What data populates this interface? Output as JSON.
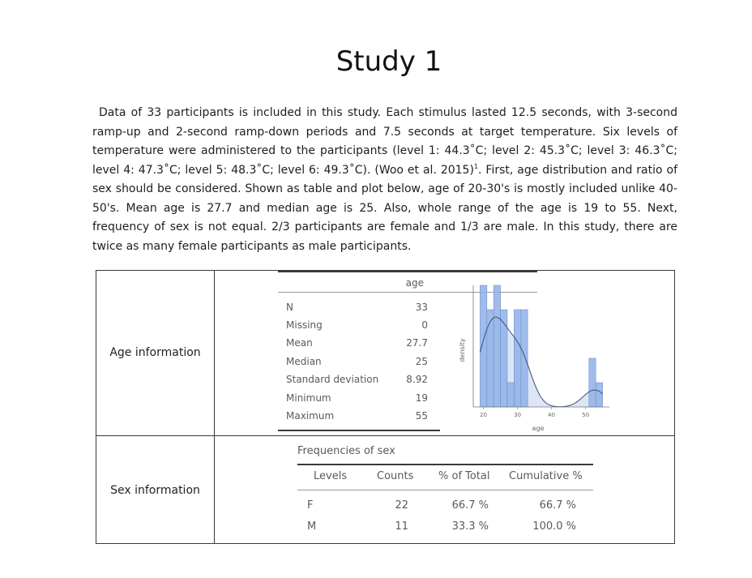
{
  "title": "Study 1",
  "paragraph": {
    "text_a": "Data of 33 participants is included in this study. Each stimulus lasted 12.5 seconds, with 3-second ramp-up and 2-second ramp-down periods and 7.5 seconds at target temperature. Six levels of temperature were administered to the participants (level 1: 44.3˚C; level 2: 45.3˚C; level 3: 46.3˚C; level 4: 47.3˚C; level 5: 48.3˚C; level 6: 49.3˚C). (Woo et al. 2015)",
    "footnote": "1",
    "text_b": ". First, age distribution and ratio of sex should be considered. Shown as table and plot below, age of 20-30's is mostly included unlike 40-50's. Mean age is 27.7 and median age is 25. Also, whole range of the age is 19 to 55. Next, frequency of sex is not equal. 2/3 participants are female and 1/3 are male. In this study, there are twice as many female participants as male participants."
  },
  "age_section": {
    "label": "Age information",
    "column_header": "age",
    "rows": [
      {
        "key": "N",
        "value": "33"
      },
      {
        "key": "Missing",
        "value": "0"
      },
      {
        "key": "Mean",
        "value": "27.7"
      },
      {
        "key": "Median",
        "value": "25"
      },
      {
        "key": "Standard deviation",
        "value": "8.92"
      },
      {
        "key": "Minimum",
        "value": "19"
      },
      {
        "key": "Maximum",
        "value": "55"
      }
    ]
  },
  "chart_data": {
    "type": "bar",
    "title": "",
    "xlabel": "age",
    "ylabel": "density",
    "x_ticks": [
      "20",
      "30",
      "40",
      "50"
    ],
    "xlim": [
      17,
      57
    ],
    "bins": [
      {
        "from": 19,
        "to": 21,
        "count": 5
      },
      {
        "from": 21,
        "to": 23,
        "count": 4
      },
      {
        "from": 23,
        "to": 25,
        "count": 5
      },
      {
        "from": 25,
        "to": 27,
        "count": 4
      },
      {
        "from": 27,
        "to": 29,
        "count": 1
      },
      {
        "from": 29,
        "to": 31,
        "count": 4
      },
      {
        "from": 31,
        "to": 33,
        "count": 4
      },
      {
        "from": 51,
        "to": 53,
        "count": 2
      },
      {
        "from": 53,
        "to": 55,
        "count": 1
      }
    ],
    "bar_color": "#8fb0e6",
    "density_fill": "#dde6f6",
    "curve_color": "#3b4f7a"
  },
  "sex_section": {
    "label": "Sex information",
    "table_title": "Frequencies of sex",
    "headers": [
      "Levels",
      "Counts",
      "% of Total",
      "Cumulative %"
    ],
    "rows": [
      [
        "F",
        "22",
        "66.7 %",
        "66.7 %"
      ],
      [
        "M",
        "11",
        "33.3 %",
        "100.0 %"
      ]
    ]
  }
}
